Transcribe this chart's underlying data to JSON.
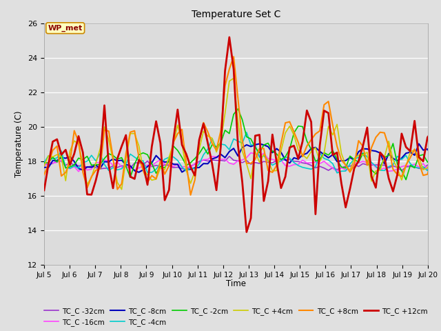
{
  "title": "Temperature Set C",
  "xlabel": "Time",
  "ylabel": "Temperature (C)",
  "ylim": [
    12,
    26
  ],
  "yticks": [
    12,
    14,
    16,
    18,
    20,
    22,
    24,
    26
  ],
  "x_tick_labels": [
    "Jul 5",
    "Jul 6",
    "Jul 7",
    "Jul 8",
    "Jul 9",
    "Jul 10",
    "Jul 11",
    "Jul 12",
    "Jul 13",
    "Jul 14",
    "Jul 15",
    "Jul 16",
    "Jul 17",
    "Jul 18",
    "Jul 19",
    "Jul 20"
  ],
  "annotation_text": "WP_met",
  "annotation_color": "#8B0000",
  "annotation_bg": "#FFFFC0",
  "annotation_edge": "#CC8800",
  "series": [
    {
      "label": "TC_C -32cm",
      "color": "#9933CC",
      "lw": 1.2
    },
    {
      "label": "TC_C -16cm",
      "color": "#FF44FF",
      "lw": 1.2
    },
    {
      "label": "TC_C -8cm",
      "color": "#0000BB",
      "lw": 1.5
    },
    {
      "label": "TC_C -4cm",
      "color": "#00CCCC",
      "lw": 1.2
    },
    {
      "label": "TC_C -2cm",
      "color": "#00CC00",
      "lw": 1.2
    },
    {
      "label": "TC_C +4cm",
      "color": "#CCCC00",
      "lw": 1.2
    },
    {
      "label": "TC_C +8cm",
      "color": "#FF8800",
      "lw": 1.5
    },
    {
      "label": "TC_C +12cm",
      "color": "#CC0000",
      "lw": 2.0
    }
  ],
  "fig_bg": "#E8E8E8",
  "plot_bg": "#DCDCDC"
}
